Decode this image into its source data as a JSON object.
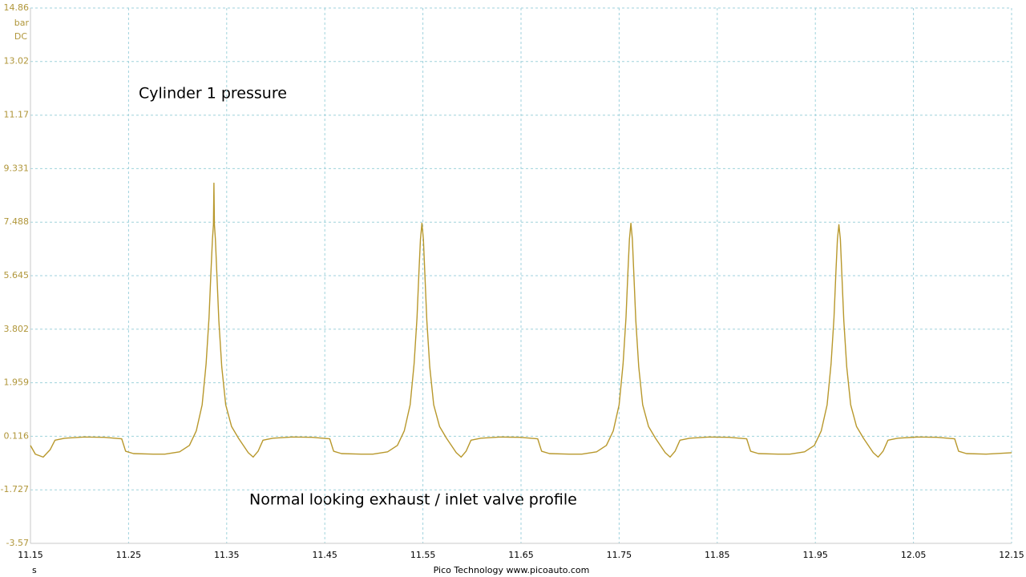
{
  "chart_data": {
    "type": "line",
    "y_unit": "bar",
    "coupling": "DC",
    "x_unit": "s",
    "footer": "Pico Technology  www.picoauto.com",
    "annotations": [
      "Cylinder 1 pressure",
      "Normal looking exhaust / inlet valve profile"
    ],
    "xlim": [
      11.15,
      12.15
    ],
    "ylim": [
      -3.57,
      14.86
    ],
    "xticks": [
      11.15,
      11.25,
      11.35,
      11.45,
      11.55,
      11.65,
      11.75,
      11.85,
      11.95,
      12.05,
      12.15
    ],
    "yticks": [
      14.86,
      13.02,
      11.17,
      9.331,
      7.488,
      5.645,
      3.802,
      1.959,
      0.116,
      -1.727,
      -3.57
    ],
    "grid": true,
    "series": [
      {
        "color": "#b8982c",
        "x": [
          11.15,
          11.155,
          11.163,
          11.17,
          11.175,
          11.185,
          11.205,
          11.225,
          11.243,
          11.247,
          11.255,
          11.275,
          11.287,
          11.302,
          11.312,
          11.319,
          11.325,
          11.329,
          11.332,
          11.334,
          11.3355,
          11.3365,
          11.337,
          11.3375,
          11.3385,
          11.34,
          11.342,
          11.345,
          11.349,
          11.355,
          11.362,
          11.372,
          11.377,
          11.382,
          11.387,
          11.397,
          11.417,
          11.437,
          11.455,
          11.459,
          11.467,
          11.487,
          11.499,
          11.514,
          11.524,
          11.531,
          11.537,
          11.541,
          11.544,
          11.546,
          11.5475,
          11.549,
          11.5505,
          11.552,
          11.554,
          11.557,
          11.561,
          11.567,
          11.574,
          11.584,
          11.589,
          11.594,
          11.599,
          11.609,
          11.629,
          11.649,
          11.667,
          11.671,
          11.679,
          11.699,
          11.712,
          11.727,
          11.737,
          11.744,
          11.75,
          11.754,
          11.757,
          11.759,
          11.7605,
          11.762,
          11.7635,
          11.765,
          11.767,
          11.77,
          11.774,
          11.78,
          11.787,
          11.797,
          11.802,
          11.807,
          11.812,
          11.822,
          11.842,
          11.862,
          11.88,
          11.884,
          11.892,
          11.912,
          11.924,
          11.939,
          11.949,
          11.956,
          11.962,
          11.966,
          11.969,
          11.971,
          11.9725,
          11.974,
          11.9755,
          11.977,
          11.979,
          11.982,
          11.986,
          11.992,
          11.999,
          12.009,
          12.014,
          12.019,
          12.024,
          12.034,
          12.054,
          12.074,
          12.092,
          12.096,
          12.104,
          12.124,
          12.15
        ],
        "values": [
          -0.2,
          -0.5,
          -0.6,
          -0.35,
          -0.02,
          0.05,
          0.09,
          0.08,
          0.03,
          -0.4,
          -0.48,
          -0.5,
          -0.5,
          -0.42,
          -0.2,
          0.3,
          1.2,
          2.6,
          4.2,
          5.8,
          6.9,
          7.4,
          8.83,
          7.4,
          6.9,
          5.7,
          4.1,
          2.5,
          1.2,
          0.45,
          0.05,
          -0.45,
          -0.6,
          -0.4,
          -0.02,
          0.05,
          0.09,
          0.08,
          0.03,
          -0.4,
          -0.48,
          -0.5,
          -0.5,
          -0.42,
          -0.2,
          0.3,
          1.2,
          2.6,
          4.2,
          5.8,
          6.9,
          7.45,
          6.9,
          5.7,
          4.1,
          2.5,
          1.2,
          0.45,
          0.05,
          -0.45,
          -0.6,
          -0.4,
          -0.02,
          0.05,
          0.09,
          0.08,
          0.03,
          -0.4,
          -0.48,
          -0.5,
          -0.5,
          -0.42,
          -0.2,
          0.3,
          1.2,
          2.6,
          4.2,
          5.8,
          6.9,
          7.45,
          6.9,
          5.7,
          4.1,
          2.5,
          1.2,
          0.45,
          0.05,
          -0.45,
          -0.6,
          -0.4,
          -0.02,
          0.05,
          0.09,
          0.08,
          0.03,
          -0.4,
          -0.48,
          -0.5,
          -0.5,
          -0.42,
          -0.2,
          0.3,
          1.2,
          2.6,
          4.2,
          5.8,
          6.9,
          7.4,
          6.9,
          5.7,
          4.1,
          2.5,
          1.2,
          0.45,
          0.05,
          -0.45,
          -0.6,
          -0.4,
          -0.02,
          0.05,
          0.09,
          0.08,
          0.03,
          -0.4,
          -0.48,
          -0.5,
          -0.45
        ]
      }
    ]
  }
}
